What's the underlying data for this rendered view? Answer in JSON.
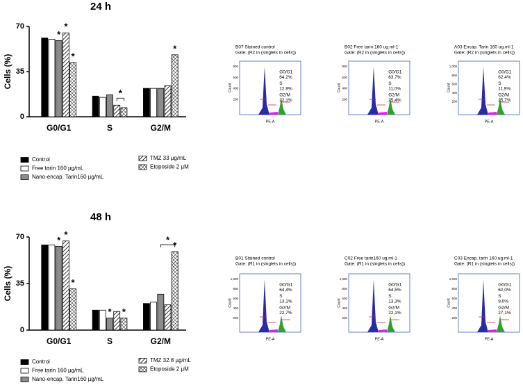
{
  "chart_data": [
    {
      "type": "bar",
      "title": "24 h",
      "y_label": "Cells (%)",
      "categories": [
        "G0/G1",
        "S",
        "G2/M"
      ],
      "ylim": [
        0,
        70
      ],
      "yticks": [
        0,
        35,
        70
      ],
      "series": [
        {
          "name": "Control",
          "color": "#000000",
          "values": [
            61,
            16,
            22
          ]
        },
        {
          "name": "Free tarin 160 µg/mL",
          "color": "#ffffff",
          "values": [
            60,
            15,
            22
          ]
        },
        {
          "name": "Nano-encap. Tarin160 µg/mL",
          "color": "#8c8c8c",
          "values": [
            59,
            17,
            22
          ]
        },
        {
          "name": "TMZ 33 µg/mL",
          "color": "#ffffff",
          "hatch": "diagonal",
          "values": [
            65,
            9,
            24
          ]
        },
        {
          "name": "Etoposide 2 µM",
          "color": "#ffffff",
          "hatch": "cross",
          "values": [
            42,
            7,
            48
          ]
        }
      ],
      "annotations": [
        {
          "text": "*",
          "category": "G0/G1",
          "series": [
            "Nano-encap. Tarin160 µg/mL"
          ]
        },
        {
          "text": "*",
          "category": "G0/G1",
          "series": [
            "TMZ 33 µg/mL"
          ]
        },
        {
          "text": "*",
          "category": "G0/G1",
          "series": [
            "Etoposide 2 µM"
          ]
        },
        {
          "text": "*",
          "category": "S",
          "series": [
            "TMZ 33 µg/mL",
            "Etoposide 2 µM"
          ]
        },
        {
          "text": "*",
          "category": "G2/M",
          "series": [
            "Etoposide 2 µM"
          ]
        }
      ]
    },
    {
      "type": "bar",
      "title": "48 h",
      "y_label": "Cells (%)",
      "categories": [
        "G0/G1",
        "S",
        "G2/M"
      ],
      "ylim": [
        0,
        70
      ],
      "yticks": [
        0,
        35,
        70
      ],
      "series": [
        {
          "name": "Control",
          "color": "#000000",
          "values": [
            64,
            15,
            20
          ]
        },
        {
          "name": "Free tarin 160 µg/mL",
          "color": "#ffffff",
          "values": [
            64,
            15,
            21
          ]
        },
        {
          "name": "Nano-encap. Tarin160 µg/mL",
          "color": "#8c8c8c",
          "values": [
            63,
            9,
            27
          ]
        },
        {
          "name": "TMZ 32.8 µg/mL",
          "color": "#ffffff",
          "hatch": "diagonal",
          "values": [
            67,
            14,
            19
          ]
        },
        {
          "name": "Etoposide 2 µM",
          "color": "#ffffff",
          "hatch": "cross",
          "values": [
            31,
            9,
            59
          ]
        }
      ],
      "annotations": [
        {
          "text": "*",
          "category": "G0/G1",
          "series": [
            "Nano-encap. Tarin160 µg/mL"
          ]
        },
        {
          "text": "*",
          "category": "G0/G1",
          "series": [
            "TMZ 32.8 µg/mL"
          ]
        },
        {
          "text": "*",
          "category": "G0/G1",
          "series": [
            "Etoposide 2 µM"
          ]
        },
        {
          "text": "*",
          "category": "S",
          "series": [
            "Nano-encap. Tarin160 µg/mL"
          ]
        },
        {
          "text": "*",
          "category": "S",
          "series": [
            "Etoposide 2 µM"
          ]
        },
        {
          "text": "*",
          "category": "G2/M",
          "series": [
            "Nano-encap. Tarin160 µg/mL",
            "Etoposide 2 µM"
          ]
        },
        {
          "text": "*",
          "category": "G2/M",
          "series": [
            "Etoposide 2 µM"
          ]
        }
      ]
    }
  ],
  "flow_panels": [
    {
      "title": "B07 Stained control",
      "gate": "Gate: (R2 in (singlets in cells))",
      "yticks": [
        "800",
        "600",
        "400",
        "200"
      ],
      "y_label": "Count",
      "x_label": "PE-A",
      "colors": [
        "#3b3bb0",
        "#e020e0",
        "#30a030"
      ],
      "labels": [
        "G0/G1",
        "64,2%",
        "S",
        "12,9%",
        "G2/M",
        "22,1%"
      ]
    },
    {
      "title": "B02 Free tarin 160 ug.ml-1",
      "gate": "Gate: (R2 in (singlets in cells))",
      "yticks": [
        "800",
        "600",
        "400",
        "200"
      ],
      "y_label": "Count",
      "x_label": "PE-A",
      "colors": [
        "#3b3bb0",
        "#e020e0",
        "#30a030"
      ],
      "labels": [
        "G0/G1",
        "63,7%",
        "S",
        "11,0%",
        "G2/M",
        "25,4%"
      ]
    },
    {
      "title": "A03 Encap. Tarin 160 ug.ml-1",
      "gate": "Gate: (R2 in (singlets in cells))",
      "yticks": [
        "1,000",
        "800",
        "600",
        "400",
        "200"
      ],
      "y_label": "Count",
      "x_label": "PE-A",
      "colors": [
        "#3b3bb0",
        "#e020e0",
        "#30a030"
      ],
      "labels": [
        "G0/G1",
        "62,4%",
        "S",
        "11,9%",
        "G2/M",
        "25,7%"
      ]
    },
    {
      "title": "B01 Stained control",
      "gate": "Gate: (R1 in (singlets in cells))",
      "yticks": [
        "1,000",
        "800",
        "600",
        "400",
        "200"
      ],
      "y_label": "Count",
      "x_label": "PE-A",
      "colors": [
        "#d02040",
        "#d02040",
        "#d02040"
      ],
      "labels": [
        "G0/G1",
        "64,4%",
        "S",
        "13,1%",
        "G2/M",
        "22,7%"
      ]
    },
    {
      "title": "C02 Free tarin160 ug.ml-1",
      "gate": "Gate: (R1 in (singlets in cells))",
      "yticks": [
        "1,000",
        "800",
        "600",
        "400",
        "200"
      ],
      "y_label": "Count",
      "x_label": "PE-A",
      "colors": [
        "#d02040",
        "#d02040",
        "#d02040"
      ],
      "labels": [
        "G0/G1",
        "64,5%",
        "S",
        "13,3%",
        "G2/M",
        "22,1%"
      ]
    },
    {
      "title": "C03 Encap. tarin 160 ug.ml-1",
      "gate": "Gate: (R1 in (singlets in cells))",
      "yticks": [
        "1,000",
        "800",
        "600",
        "400",
        "200"
      ],
      "y_label": "Count",
      "x_label": "PE-A",
      "colors": [
        "#d02040",
        "#d02040",
        "#d02040"
      ],
      "labels": [
        "G0/G1",
        "62,0%",
        "S",
        "9,0%",
        "G2/M",
        "27,1%"
      ]
    }
  ]
}
